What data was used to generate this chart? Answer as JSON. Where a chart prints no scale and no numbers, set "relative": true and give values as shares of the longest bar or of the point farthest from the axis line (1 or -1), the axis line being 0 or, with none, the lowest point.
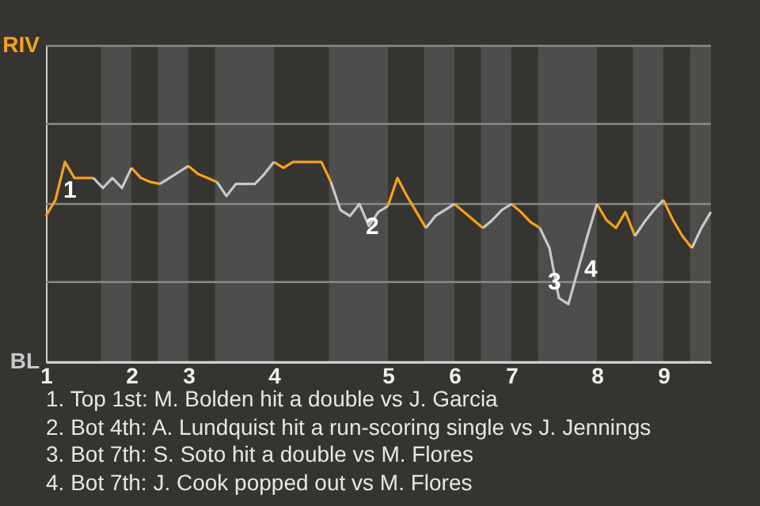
{
  "chart_data": {
    "type": "line",
    "relative": true,
    "categories": [
      "1",
      null,
      null,
      null,
      null,
      null,
      null,
      null,
      null,
      "2",
      null,
      null,
      null,
      null,
      null,
      "3",
      null,
      null,
      null,
      null,
      null,
      null,
      null,
      null,
      "4",
      null,
      null,
      null,
      null,
      null,
      null,
      null,
      null,
      null,
      null,
      null,
      "5",
      null,
      null,
      null,
      null,
      null,
      null,
      "6",
      null,
      null,
      null,
      null,
      null,
      "7",
      null,
      null,
      null,
      null,
      null,
      null,
      null,
      null,
      "8",
      null,
      null,
      null,
      null,
      null,
      null,
      "9",
      null,
      null,
      null,
      null,
      null
    ],
    "series": [
      {
        "color": "#f5a21c",
        "values": [
          0.73,
          0.81,
          1,
          0.92,
          0.92,
          0.92,
          null,
          null,
          null,
          0.97,
          0.92,
          0.9,
          0.89,
          null,
          null,
          0.98,
          0.94,
          0.92,
          0.9,
          null,
          null,
          null,
          null,
          null,
          1,
          0.97,
          1,
          1,
          1,
          1,
          0.9,
          null,
          null,
          null,
          null,
          null,
          0.78,
          0.92,
          0.83,
          0.75,
          0.67,
          null,
          null,
          0.79,
          0.75,
          0.71,
          0.67,
          null,
          null,
          0.79,
          0.75,
          0.7,
          0.67,
          null,
          null,
          null,
          null,
          null,
          0.79,
          0.71,
          0.67,
          0.75,
          0.63,
          null,
          null,
          0.81,
          0.71,
          0.63,
          0.57,
          null,
          null
        ]
      },
      {
        "color": "#c8c8c8",
        "values": [
          null,
          null,
          null,
          null,
          null,
          0.92,
          0.87,
          0.92,
          0.87,
          0.97,
          null,
          null,
          0.89,
          0.92,
          0.95,
          0.98,
          null,
          null,
          0.9,
          0.83,
          0.89,
          0.89,
          0.89,
          0.94,
          1,
          null,
          null,
          null,
          null,
          null,
          0.9,
          0.76,
          0.73,
          0.79,
          0.68,
          0.75,
          0.78,
          null,
          null,
          null,
          0.67,
          0.73,
          0.76,
          0.79,
          null,
          null,
          0.67,
          0.71,
          0.76,
          0.79,
          null,
          null,
          0.67,
          0.57,
          0.32,
          0.29,
          0.46,
          0.63,
          0.79,
          null,
          null,
          null,
          0.63,
          0.7,
          0.76,
          0.81,
          null,
          null,
          0.57,
          0.67,
          0.75
        ]
      }
    ],
    "ref_lines": [
      {
        "axis": "y",
        "value": 1.58,
        "label": "RIV",
        "color": "#8a8a88"
      },
      {
        "axis": "y",
        "value": 1.19,
        "color": "#8a8a88"
      },
      {
        "axis": "y",
        "value": 0.79,
        "color": "#8a8a88"
      },
      {
        "axis": "y",
        "value": 0.4,
        "color": "#8a8a88"
      },
      {
        "axis": "y",
        "value": 0,
        "label": "BL",
        "color": "#d0d0d0"
      }
    ],
    "annotations": [
      "1",
      "2",
      "3",
      "4",
      "1. Top 1st: M. Bolden hit a double vs J. Garcia",
      "2. Bot 4th: A. Lundquist hit a run-scoring single vs J. Jennings",
      "3. Bot 7th: S. Soto hit a double vs M. Flores",
      "4. Bot 7th: J. Cook popped out vs M. Flores"
    ]
  }
}
